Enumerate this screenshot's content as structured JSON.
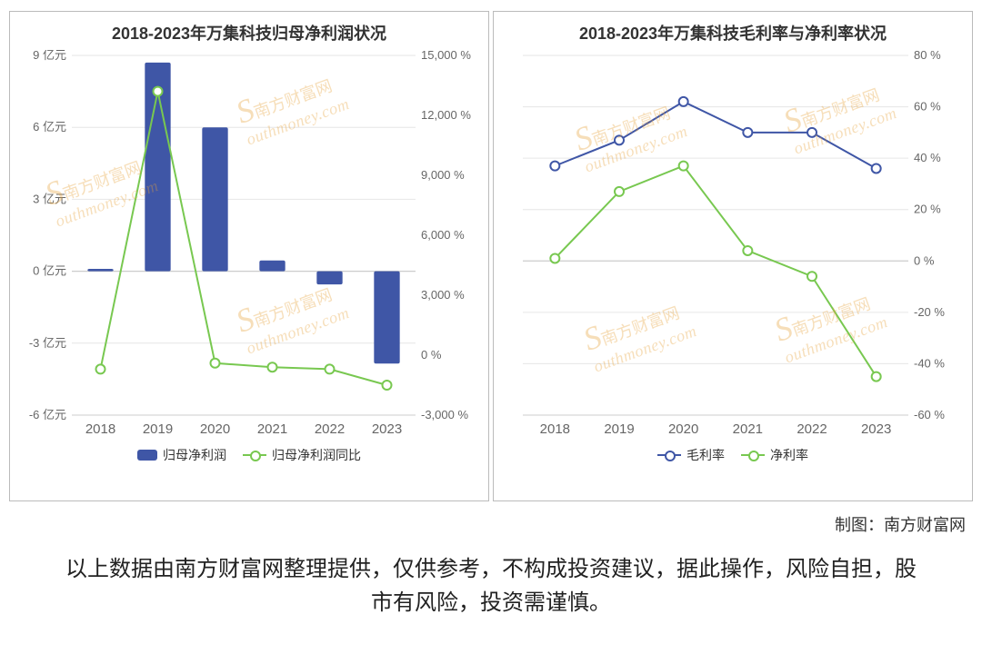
{
  "colors": {
    "bar": "#3f56a6",
    "line_green": "#78c850",
    "line_blue": "#3f56a6",
    "grid": "#e6e6e6",
    "axis_text": "#666666",
    "title_text": "#333333",
    "background": "#ffffff",
    "watermark": "#e8a23a"
  },
  "watermark": {
    "label_cn": "南方财富网",
    "label_en": "outhmoney.com",
    "prefix_letter": "S"
  },
  "credit_text": "制图：南方财富网",
  "disclaimer_text": "以上数据由南方财富网整理提供，仅供参考，不构成投资建议，据此操作，风险自担，股市有风险，投资需谨慎。",
  "left_chart": {
    "type": "bar+line-dual-axis",
    "title": "2018-2023年万集科技归母净利润状况",
    "categories": [
      "2018",
      "2019",
      "2020",
      "2021",
      "2022",
      "2023"
    ],
    "y_left": {
      "ticks": [
        -6,
        -3,
        0,
        3,
        6,
        9
      ],
      "tick_labels": [
        "-6 亿元",
        "-3 亿元",
        "0 亿元",
        "3 亿元",
        "6 亿元",
        "9 亿元"
      ],
      "min": -6,
      "max": 9
    },
    "y_right": {
      "ticks": [
        -3000,
        0,
        3000,
        6000,
        9000,
        12000,
        15000
      ],
      "tick_labels": [
        "-3,000 %",
        "0 %",
        "3,000 %",
        "6,000 %",
        "9,000 %",
        "12,000 %",
        "15,000 %"
      ],
      "min": -3000,
      "max": 15000
    },
    "bars": {
      "name": "归母净利润",
      "color": "#3f56a6",
      "width": 0.45,
      "values": [
        0.1,
        8.7,
        6.0,
        0.45,
        -0.55,
        -3.85
      ]
    },
    "line": {
      "name": "归母净利润同比",
      "color": "#78c850",
      "marker": "circle-open",
      "marker_size": 5,
      "line_width": 2,
      "values": [
        -700,
        13200,
        -400,
        -600,
        -700,
        -1500
      ]
    },
    "legend": [
      {
        "type": "bar",
        "label": "归母净利润",
        "color": "#3f56a6"
      },
      {
        "type": "line",
        "label": "归母净利润同比",
        "color": "#78c850"
      }
    ],
    "title_fontsize": 18,
    "axis_fontsize": 13,
    "xcat_fontsize": 15
  },
  "right_chart": {
    "type": "line-dual-series",
    "title": "2018-2023年万集科技毛利率与净利率状况",
    "categories": [
      "2018",
      "2019",
      "2020",
      "2021",
      "2022",
      "2023"
    ],
    "y_right": {
      "ticks": [
        -60,
        -40,
        -20,
        0,
        20,
        40,
        60,
        80
      ],
      "tick_labels": [
        "-60 %",
        "-40 %",
        "-20 %",
        "0 %",
        "20 %",
        "40 %",
        "60 %",
        "80 %"
      ],
      "min": -60,
      "max": 80
    },
    "series": [
      {
        "name": "毛利率",
        "color": "#3f56a6",
        "marker": "circle-open",
        "marker_size": 5,
        "line_width": 2,
        "values": [
          37,
          47,
          62,
          50,
          50,
          36
        ]
      },
      {
        "name": "净利率",
        "color": "#78c850",
        "marker": "circle-open",
        "marker_size": 5,
        "line_width": 2,
        "values": [
          1,
          27,
          37,
          4,
          -6,
          -45
        ]
      }
    ],
    "legend": [
      {
        "type": "line",
        "label": "毛利率",
        "color": "#3f56a6"
      },
      {
        "type": "line",
        "label": "净利率",
        "color": "#78c850"
      }
    ],
    "title_fontsize": 18,
    "axis_fontsize": 13,
    "xcat_fontsize": 15
  }
}
